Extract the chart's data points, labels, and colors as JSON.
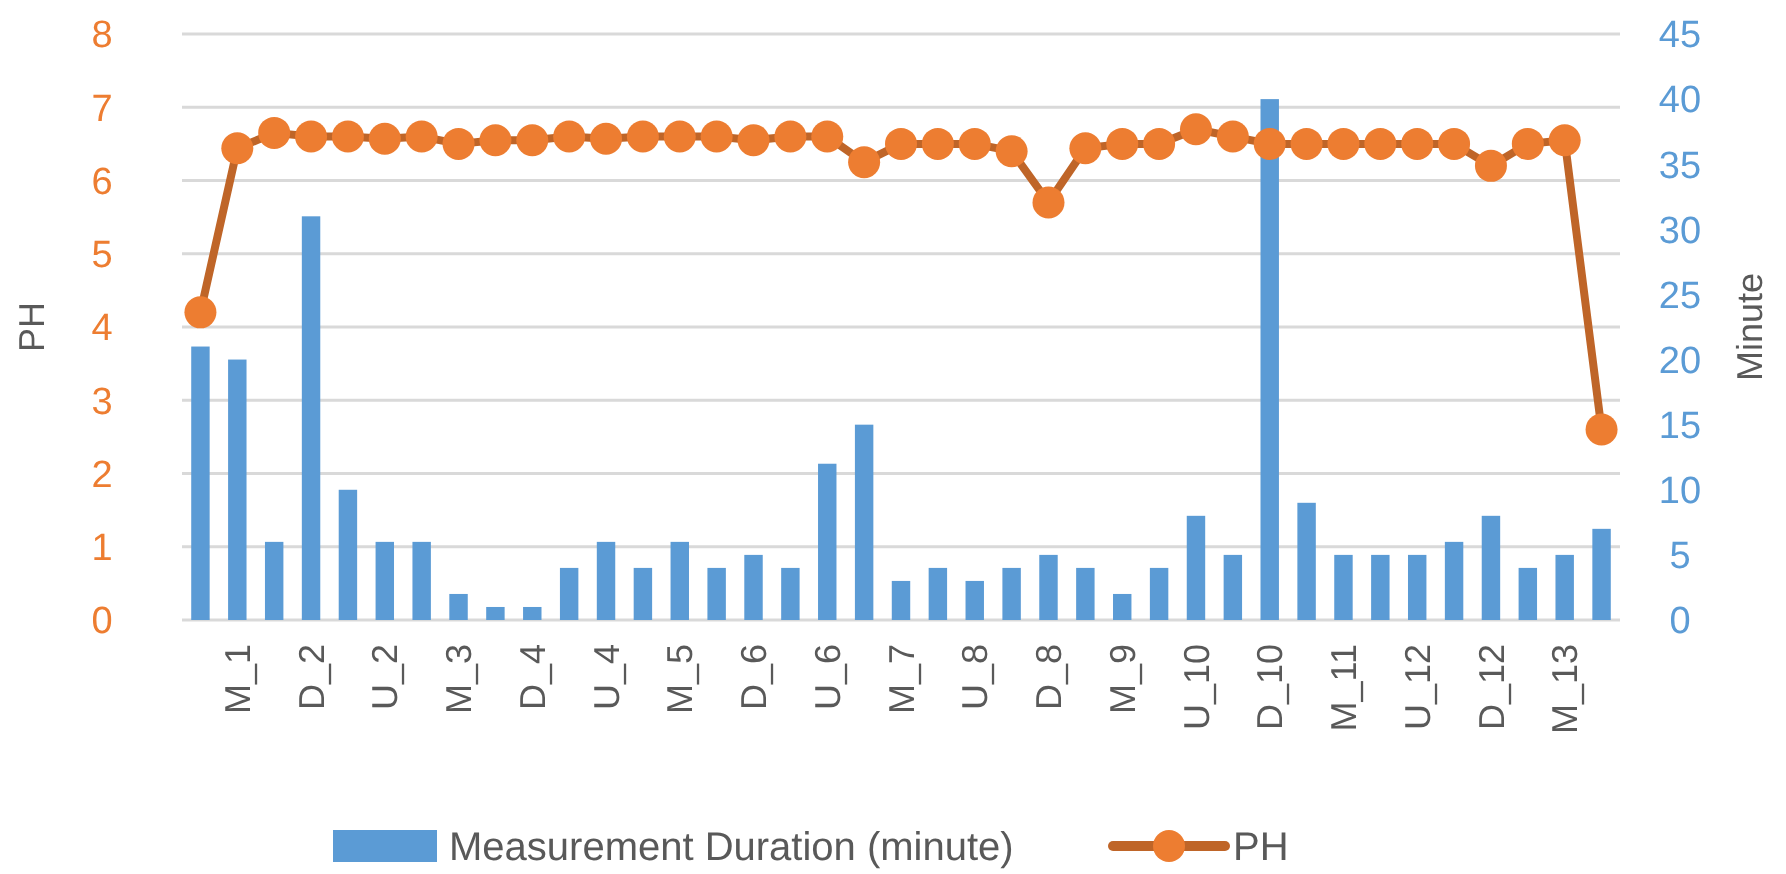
{
  "chart_data": {
    "type": "bar",
    "ylabel": "PH",
    "y2label": "Minute",
    "categories": [
      null,
      "M_1",
      null,
      "D_2",
      null,
      "U_2",
      null,
      "M_3",
      null,
      "D_4",
      null,
      "U_4",
      null,
      "M_5",
      null,
      "D_6",
      null,
      "U_6",
      null,
      "M_7",
      null,
      "U_8",
      null,
      "D_8",
      null,
      "M_9",
      null,
      "U_10",
      null,
      "D_10",
      null,
      "M_11",
      null,
      "U_12",
      null,
      "D_12",
      null,
      "M_13",
      null
    ],
    "series": [
      {
        "name": "Measurement Duration (minute)",
        "axis": "y2",
        "color": "#5b9bd5",
        "values": [
          21,
          20,
          6,
          31,
          10,
          6,
          6,
          2,
          1,
          1,
          4,
          6,
          4,
          6,
          4,
          5,
          4,
          12,
          15,
          3,
          4,
          3,
          4,
          5,
          4,
          2,
          4,
          8,
          5,
          40,
          9,
          5,
          5,
          5,
          6,
          8,
          4,
          5,
          7
        ]
      },
      {
        "name": "PH",
        "type": "line",
        "color": "#ed7d31",
        "marker": "circle",
        "values": [
          4.2,
          6.44,
          6.65,
          6.6,
          6.6,
          6.57,
          6.6,
          6.5,
          6.55,
          6.55,
          6.6,
          6.57,
          6.6,
          6.6,
          6.6,
          6.55,
          6.6,
          6.6,
          6.25,
          6.5,
          6.5,
          6.5,
          6.4,
          5.7,
          6.44,
          6.5,
          6.5,
          6.7,
          6.6,
          6.5,
          6.5,
          6.5,
          6.5,
          6.5,
          6.5,
          6.2,
          6.5,
          6.55,
          2.6
        ]
      }
    ],
    "ylim": [
      0,
      8
    ],
    "yticks": [
      0,
      1,
      2,
      3,
      4,
      5,
      6,
      7,
      8
    ],
    "y2lim": [
      0,
      45
    ],
    "y2ticks": [
      0,
      5,
      10,
      15,
      20,
      25,
      30,
      35,
      40,
      45
    ],
    "grid": "y",
    "legend": "bottom"
  }
}
